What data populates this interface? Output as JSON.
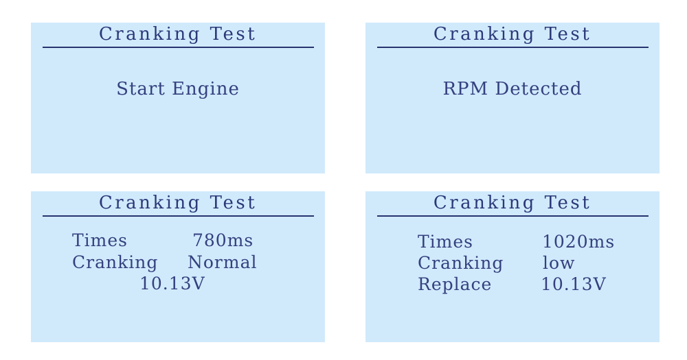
{
  "colors": {
    "panel_bg": "#d0eafc",
    "text": "#34407e",
    "rule": "#26336f"
  },
  "panels": [
    {
      "title": "Cranking Test",
      "message": "Start Engine"
    },
    {
      "title": "Cranking Test",
      "message": "RPM Detected"
    },
    {
      "title": "Cranking Test",
      "rows": [
        {
          "label": "Times",
          "value": "780ms"
        },
        {
          "label": "Cranking",
          "value": "Normal"
        },
        {
          "label": "",
          "value": "10.13V"
        }
      ]
    },
    {
      "title": "Cranking Test",
      "rows": [
        {
          "label": "Times",
          "value": "1020ms"
        },
        {
          "label": "Cranking",
          "value": "low"
        },
        {
          "label": "Replace",
          "value": "10.13V"
        }
      ]
    }
  ]
}
